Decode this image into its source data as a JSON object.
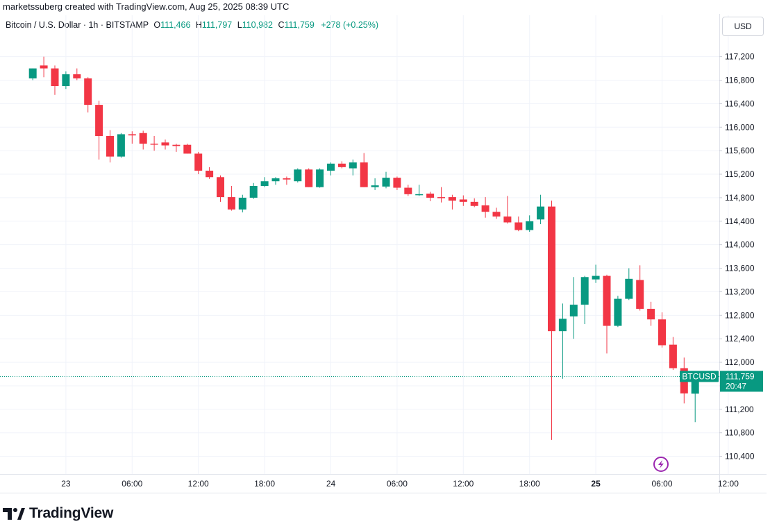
{
  "header": {
    "attribution": "marketssuberg created with TradingView.com, Aug 25, 2025 08:39 UTC"
  },
  "legend": {
    "symbol": "Bitcoin / U.S. Dollar · 1h · BITSTAMP",
    "o_label": "O",
    "o_value": "111,466",
    "h_label": "H",
    "h_value": "111,797",
    "l_label": "L",
    "l_value": "110,982",
    "c_label": "C",
    "c_value": "111,759",
    "change": "+278 (+0.25%)"
  },
  "currency_button": "USD",
  "footer": {
    "brand": "TradingView"
  },
  "colors": {
    "up": "#089981",
    "down": "#f23645",
    "grid": "#f0f3fa",
    "text": "#131722"
  },
  "chart_data": {
    "type": "candlestick",
    "interval": "1h",
    "x_tick_labels": [
      "23",
      "06:00",
      "12:00",
      "18:00",
      "24",
      "06:00",
      "12:00",
      "18:00",
      "25",
      "06:00",
      "12:00"
    ],
    "y_tick_labels": [
      "117,200",
      "116,800",
      "116,400",
      "116,000",
      "115,600",
      "115,200",
      "114,800",
      "114,400",
      "114,000",
      "113,600",
      "113,200",
      "112,800",
      "112,400",
      "112,000",
      "111,200",
      "110,800",
      "110,400"
    ],
    "y_ticks": [
      117200,
      116800,
      116400,
      116000,
      115600,
      115200,
      114800,
      114400,
      114000,
      113600,
      113200,
      112800,
      112400,
      112000,
      111600,
      111200,
      110800,
      110400
    ],
    "ylim": [
      110100,
      117550
    ],
    "x_tick_bar_index": [
      3,
      9,
      15,
      21,
      27,
      33,
      39,
      45,
      51,
      57,
      63
    ],
    "price_line": {
      "label": "BTCUSD",
      "value": 111759,
      "value_text": "111,759",
      "countdown": "20:47"
    },
    "candles": [
      {
        "o": 116830,
        "h": 117000,
        "l": 116800,
        "c": 117000
      },
      {
        "o": 117050,
        "h": 117200,
        "l": 116850,
        "c": 117000
      },
      {
        "o": 117000,
        "h": 117050,
        "l": 116550,
        "c": 116700
      },
      {
        "o": 116700,
        "h": 116950,
        "l": 116650,
        "c": 116900
      },
      {
        "o": 116900,
        "h": 117000,
        "l": 116800,
        "c": 116830
      },
      {
        "o": 116830,
        "h": 116850,
        "l": 116250,
        "c": 116380
      },
      {
        "o": 116380,
        "h": 116450,
        "l": 115450,
        "c": 115850
      },
      {
        "o": 115850,
        "h": 115950,
        "l": 115400,
        "c": 115500
      },
      {
        "o": 115500,
        "h": 115900,
        "l": 115480,
        "c": 115880
      },
      {
        "o": 115880,
        "h": 115930,
        "l": 115720,
        "c": 115860
      },
      {
        "o": 115900,
        "h": 115940,
        "l": 115620,
        "c": 115720
      },
      {
        "o": 115720,
        "h": 115850,
        "l": 115600,
        "c": 115710
      },
      {
        "o": 115740,
        "h": 115790,
        "l": 115620,
        "c": 115690
      },
      {
        "o": 115700,
        "h": 115720,
        "l": 115580,
        "c": 115680
      },
      {
        "o": 115700,
        "h": 115720,
        "l": 115550,
        "c": 115550
      },
      {
        "o": 115550,
        "h": 115580,
        "l": 115200,
        "c": 115260
      },
      {
        "o": 115260,
        "h": 115320,
        "l": 115120,
        "c": 115150
      },
      {
        "o": 115150,
        "h": 115180,
        "l": 114730,
        "c": 114810
      },
      {
        "o": 114810,
        "h": 115000,
        "l": 114580,
        "c": 114600
      },
      {
        "o": 114600,
        "h": 114850,
        "l": 114550,
        "c": 114800
      },
      {
        "o": 114800,
        "h": 115050,
        "l": 114780,
        "c": 115000
      },
      {
        "o": 115000,
        "h": 115150,
        "l": 114980,
        "c": 115080
      },
      {
        "o": 115080,
        "h": 115150,
        "l": 115020,
        "c": 115130
      },
      {
        "o": 115130,
        "h": 115160,
        "l": 115020,
        "c": 115110
      },
      {
        "o": 115080,
        "h": 115300,
        "l": 115060,
        "c": 115280
      },
      {
        "o": 115280,
        "h": 115300,
        "l": 114980,
        "c": 114980
      },
      {
        "o": 114980,
        "h": 115300,
        "l": 114970,
        "c": 115280
      },
      {
        "o": 115260,
        "h": 115400,
        "l": 115180,
        "c": 115380
      },
      {
        "o": 115380,
        "h": 115420,
        "l": 115300,
        "c": 115320
      },
      {
        "o": 115300,
        "h": 115450,
        "l": 115180,
        "c": 115400
      },
      {
        "o": 115400,
        "h": 115560,
        "l": 114980,
        "c": 114980
      },
      {
        "o": 114980,
        "h": 115130,
        "l": 114930,
        "c": 115010
      },
      {
        "o": 114990,
        "h": 115240,
        "l": 114960,
        "c": 115140
      },
      {
        "o": 115140,
        "h": 115160,
        "l": 114930,
        "c": 114970
      },
      {
        "o": 114970,
        "h": 115020,
        "l": 114830,
        "c": 114860
      },
      {
        "o": 114850,
        "h": 115020,
        "l": 114830,
        "c": 114860
      },
      {
        "o": 114870,
        "h": 114900,
        "l": 114740,
        "c": 114800
      },
      {
        "o": 114810,
        "h": 114980,
        "l": 114720,
        "c": 114800
      },
      {
        "o": 114810,
        "h": 114850,
        "l": 114600,
        "c": 114750
      },
      {
        "o": 114770,
        "h": 114840,
        "l": 114660,
        "c": 114730
      },
      {
        "o": 114730,
        "h": 114790,
        "l": 114640,
        "c": 114660
      },
      {
        "o": 114670,
        "h": 114810,
        "l": 114460,
        "c": 114560
      },
      {
        "o": 114560,
        "h": 114630,
        "l": 114440,
        "c": 114480
      },
      {
        "o": 114480,
        "h": 114830,
        "l": 114360,
        "c": 114380
      },
      {
        "o": 114380,
        "h": 114480,
        "l": 114230,
        "c": 114250
      },
      {
        "o": 114250,
        "h": 114500,
        "l": 114220,
        "c": 114400
      },
      {
        "o": 114430,
        "h": 114850,
        "l": 114350,
        "c": 114650
      },
      {
        "o": 114650,
        "h": 114750,
        "l": 110680,
        "c": 112530
      },
      {
        "o": 112530,
        "h": 113000,
        "l": 111720,
        "c": 112740
      },
      {
        "o": 112780,
        "h": 113450,
        "l": 112400,
        "c": 112980
      },
      {
        "o": 112980,
        "h": 113470,
        "l": 112650,
        "c": 113450
      },
      {
        "o": 113410,
        "h": 113660,
        "l": 113350,
        "c": 113470
      },
      {
        "o": 113470,
        "h": 113490,
        "l": 112150,
        "c": 112620
      },
      {
        "o": 112620,
        "h": 113130,
        "l": 112600,
        "c": 113080
      },
      {
        "o": 113080,
        "h": 113600,
        "l": 113060,
        "c": 113420
      },
      {
        "o": 113400,
        "h": 113650,
        "l": 112880,
        "c": 112910
      },
      {
        "o": 112910,
        "h": 113030,
        "l": 112620,
        "c": 112730
      },
      {
        "o": 112730,
        "h": 112850,
        "l": 112250,
        "c": 112290
      },
      {
        "o": 112300,
        "h": 112430,
        "l": 111870,
        "c": 111900
      },
      {
        "o": 111900,
        "h": 112080,
        "l": 111300,
        "c": 111470
      },
      {
        "o": 111466,
        "h": 111797,
        "l": 110982,
        "c": 111759
      }
    ]
  }
}
